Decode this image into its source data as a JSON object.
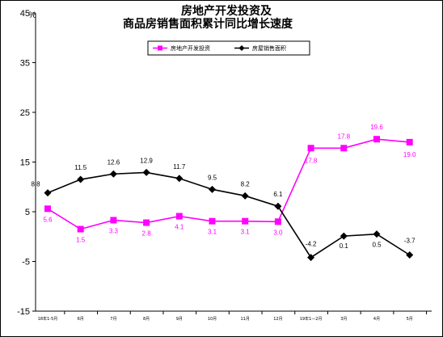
{
  "chart_data": {
    "type": "line",
    "title": "房地产开发投资及",
    "subtitle": "商品房销售面积累计同比增长速度",
    "ylabel": "%",
    "ylim": [
      -15,
      45
    ],
    "yticks": [
      "45",
      "35",
      "25",
      "15",
      "5",
      "-5",
      "-15"
    ],
    "categories": [
      "18年1-5月",
      "6月",
      "7月",
      "8月",
      "9月",
      "10月",
      "11月",
      "12月",
      "19年1—2月",
      "3月",
      "4月",
      "5月"
    ],
    "grid": false,
    "legend_position": "top-center",
    "series": [
      {
        "name": "房地产开发投资",
        "color": "#ff00ff",
        "marker": "square",
        "values": [
          5.6,
          1.5,
          3.3,
          2.8,
          4.1,
          3.1,
          3.1,
          3.0,
          17.8,
          17.8,
          19.6,
          19.0
        ],
        "labels": [
          "5.6",
          "1.5",
          "3.3",
          "2.8",
          "4.1",
          "3.1",
          "3.1",
          "3.0",
          "17.8",
          "17.8",
          "19.6",
          "19.0"
        ]
      },
      {
        "name": "房屋销售面积",
        "color": "#000000",
        "marker": "diamond",
        "values": [
          8.8,
          11.5,
          12.6,
          12.9,
          11.7,
          9.5,
          8.2,
          6.1,
          -4.2,
          0.1,
          0.5,
          -3.7
        ],
        "labels": [
          "8.8",
          "11.5",
          "12.6",
          "12.9",
          "11.7",
          "9.5",
          "8.2",
          "6.1",
          "-4.2",
          "0.1",
          "0.5",
          "-3.7"
        ]
      }
    ]
  }
}
